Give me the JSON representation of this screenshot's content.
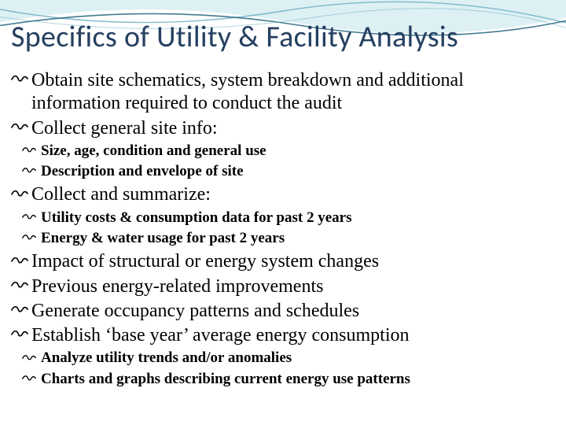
{
  "colors": {
    "title": "#254061",
    "body": "#000000",
    "waveFillLight": "#d7edf2",
    "waveLineDark": "#2f6e85",
    "waveLineMid": "#6aaec2",
    "scribble": "#000000",
    "background": "#ffffff"
  },
  "typography": {
    "titleFontSize": 38,
    "lvl1FontSize": 24,
    "lvl2FontSize": 19,
    "titleFontFamily": "Calibri Light, Calibri, Segoe UI, Arial, sans-serif",
    "bodyFontFamily": "Georgia, Times New Roman, serif"
  },
  "title": "Specifics of Utility & Facility Analysis",
  "bullets": [
    {
      "text": "Obtain site schematics, system breakdown and additional information required to conduct the audit",
      "children": []
    },
    {
      "text": "Collect general site info:",
      "children": [
        {
          "text": "Size, age, condition and general use"
        },
        {
          "text": "Description and envelope of site"
        }
      ]
    },
    {
      "text": "Collect and summarize:",
      "children": [
        {
          "text": "Utility costs & consumption data for past 2 years"
        },
        {
          "text": "Energy & water usage for past 2 years"
        }
      ]
    },
    {
      "text": "Impact of structural or energy system changes",
      "children": []
    },
    {
      "text": "Previous energy-related improvements",
      "children": []
    },
    {
      "text": "Generate occupancy patterns and schedules",
      "children": []
    },
    {
      "text": "Establish ‘base year’ average energy consumption",
      "children": [
        {
          "text": "Analyze utility trends and/or anomalies"
        },
        {
          "text": "Charts and graphs describing current energy use patterns"
        }
      ]
    }
  ]
}
